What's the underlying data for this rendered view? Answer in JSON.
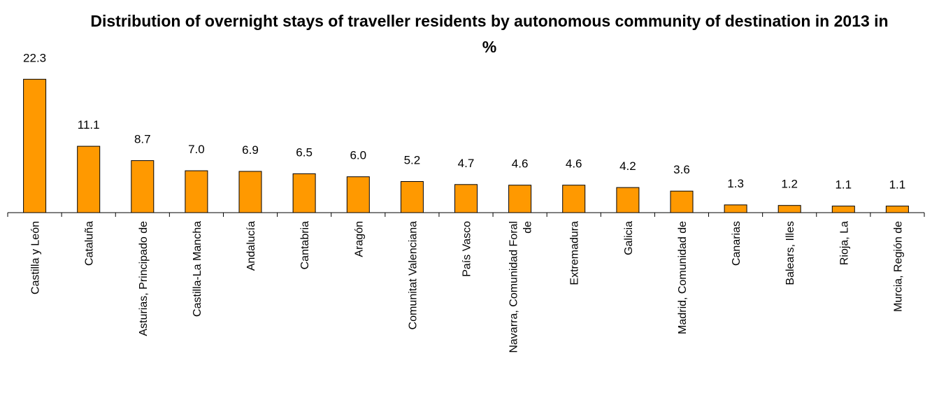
{
  "chart_data": {
    "type": "bar",
    "title": "Distribution of overnight stays of traveller residents by autonomous community of destination in 2013 in %",
    "xlabel": "",
    "ylabel": "",
    "categories": [
      "Castilla y León",
      "Cataluña",
      "Asturias, Principado de",
      "Castilla-La Mancha",
      "Andalucía",
      "Cantabria",
      "Aragón",
      "Comunitat Valenciana",
      "País Vasco",
      "Navarra, Comunidad Foral de",
      "Extremadura",
      "Galicia",
      "Madrid, Comunidad de",
      "Canarias",
      "Balears, Illes",
      "Rioja, La",
      "Murcia, Región de"
    ],
    "values": [
      22.3,
      11.1,
      8.7,
      7.0,
      6.9,
      6.5,
      6.0,
      5.2,
      4.7,
      4.6,
      4.6,
      4.2,
      3.6,
      1.3,
      1.2,
      1.1,
      1.1
    ],
    "value_labels": [
      "22.3",
      "11.1",
      "8.7",
      "7.0",
      "6.9",
      "6.5",
      "6.0",
      "5.2",
      "4.7",
      "4.6",
      "4.6",
      "4.2",
      "3.6",
      "1.3",
      "1.2",
      "1.1",
      "1.1"
    ],
    "ylim": [
      0,
      23.5
    ],
    "grid": false,
    "legend": "none",
    "bar_color": "#FF9900",
    "bar_edge_color": "#000000"
  }
}
